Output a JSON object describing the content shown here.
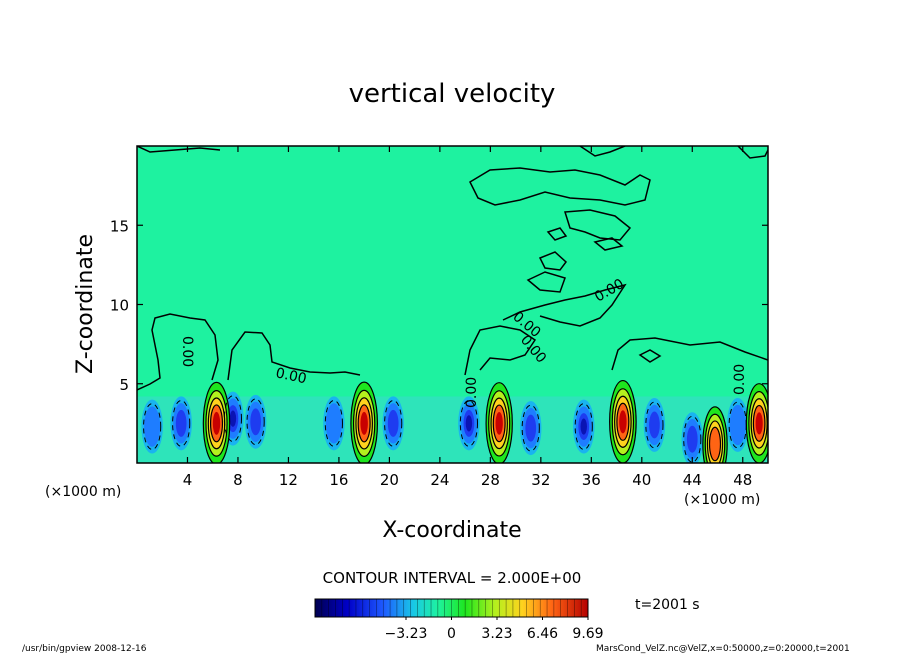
{
  "chart_data": {
    "type": "heatmap",
    "title": "vertical velocity",
    "xlabel": "X-coordinate",
    "ylabel": "Z-coordinate",
    "x_unit_label": "(×1000 m)",
    "x_unit_label_right": "(×1000 m)",
    "xlim": [
      0,
      50
    ],
    "ylim": [
      0,
      20
    ],
    "x_ticks": [
      4,
      8,
      12,
      16,
      20,
      24,
      28,
      32,
      36,
      40,
      44,
      48
    ],
    "y_ticks": [
      5,
      10,
      15
    ],
    "contour_interval_text": "CONTOUR INTERVAL = 2.000E+00",
    "contour_labels": [
      "0.00",
      "0.00",
      "0.00",
      "0.00",
      "0.00",
      "0.00",
      "0.00"
    ],
    "colorbar": {
      "tick_labels": [
        "−3.23",
        "0",
        "3.23",
        "6.46",
        "9.69"
      ],
      "tick_values": [
        -3.23,
        0,
        3.23,
        6.46,
        9.69
      ],
      "range": [
        -9.69,
        9.69
      ]
    },
    "time_text": "t=2001 s",
    "updrafts": [
      {
        "x": 6.3,
        "z": 2.5,
        "w": 9.5
      },
      {
        "x": 18.0,
        "z": 2.5,
        "w": 9.7
      },
      {
        "x": 28.7,
        "z": 2.5,
        "w": 9.3
      },
      {
        "x": 38.5,
        "z": 2.6,
        "w": 9.69
      },
      {
        "x": 45.8,
        "z": 1.2,
        "w": 6.5
      },
      {
        "x": 49.3,
        "z": 2.5,
        "w": 8.5
      }
    ],
    "downdrafts": [
      {
        "x": 1.2,
        "z": 2.3,
        "w": -3.0
      },
      {
        "x": 3.5,
        "z": 2.5,
        "w": -4.0
      },
      {
        "x": 7.6,
        "z": 2.8,
        "w": -5.0
      },
      {
        "x": 9.4,
        "z": 2.6,
        "w": -4.0
      },
      {
        "x": 15.6,
        "z": 2.5,
        "w": -3.0
      },
      {
        "x": 20.3,
        "z": 2.5,
        "w": -3.5
      },
      {
        "x": 26.3,
        "z": 2.5,
        "w": -5.0
      },
      {
        "x": 31.2,
        "z": 2.2,
        "w": -4.0
      },
      {
        "x": 35.4,
        "z": 2.3,
        "w": -5.0
      },
      {
        "x": 41.0,
        "z": 2.4,
        "w": -4.0
      },
      {
        "x": 44.0,
        "z": 1.5,
        "w": -4.5
      },
      {
        "x": 47.6,
        "z": 2.4,
        "w": -3.0
      }
    ]
  },
  "footer": {
    "left": "/usr/bin/gpview   2008-12-16",
    "right": "MarsCond_VelZ.nc@VelZ,x=0:50000,z=0:20000,t=2001"
  },
  "colors": {
    "background_field": "#1ef2a0",
    "contour": "#000000"
  }
}
